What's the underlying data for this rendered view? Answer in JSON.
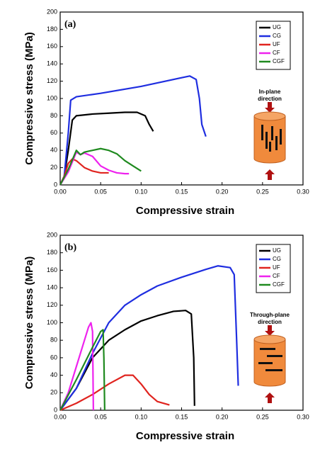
{
  "chart_data": [
    {
      "type": "line",
      "panel_label": "(a)",
      "x_label": "Compressive strain",
      "y_label": "Compressive stress (MPa)",
      "note_lines": [
        "In-plane",
        "direction"
      ],
      "xlim": [
        0,
        0.3
      ],
      "ylim": [
        0,
        200
      ],
      "xticks": [
        {
          "value": 0,
          "label": "0.00"
        },
        {
          "value": 0.05,
          "label": "0.05"
        },
        {
          "value": 0.1,
          "label": "0.10"
        },
        {
          "value": 0.15,
          "label": "0.15"
        },
        {
          "value": 0.2,
          "label": "0.20"
        },
        {
          "value": 0.25,
          "label": "0.25"
        },
        {
          "value": 0.3,
          "label": "0.30"
        }
      ],
      "yticks": [
        0,
        20,
        40,
        60,
        80,
        100,
        120,
        140,
        160,
        180,
        200
      ],
      "series": [
        {
          "name": "UG",
          "color": "#000000",
          "x": [
            0,
            0.005,
            0.01,
            0.015,
            0.02,
            0.04,
            0.06,
            0.08,
            0.095,
            0.105,
            0.11,
            0.115
          ],
          "values": [
            0,
            10,
            40,
            75,
            80,
            82,
            83,
            84,
            84,
            80,
            70,
            62
          ]
        },
        {
          "name": "CG",
          "color": "#1f2ee0",
          "x": [
            0,
            0.005,
            0.01,
            0.013,
            0.02,
            0.05,
            0.1,
            0.15,
            0.16,
            0.168,
            0.172,
            0.175,
            0.18
          ],
          "values": [
            0,
            10,
            60,
            98,
            102,
            106,
            114,
            124,
            126,
            122,
            100,
            70,
            56
          ]
        },
        {
          "name": "UF",
          "color": "#e0241f",
          "x": [
            0,
            0.005,
            0.01,
            0.015,
            0.02,
            0.03,
            0.04,
            0.05,
            0.06
          ],
          "values": [
            0,
            10,
            25,
            30,
            28,
            20,
            16,
            14,
            14
          ]
        },
        {
          "name": "CF",
          "color": "#ee22ee",
          "x": [
            0,
            0.01,
            0.02,
            0.025,
            0.03,
            0.04,
            0.05,
            0.06,
            0.07,
            0.08,
            0.085
          ],
          "values": [
            0,
            15,
            38,
            35,
            37,
            33,
            22,
            17,
            14,
            13,
            13
          ]
        },
        {
          "name": "CGF",
          "color": "#1f8a1f",
          "x": [
            0,
            0.01,
            0.02,
            0.025,
            0.03,
            0.04,
            0.05,
            0.06,
            0.07,
            0.08,
            0.09,
            0.1
          ],
          "values": [
            0,
            18,
            40,
            35,
            38,
            40,
            42,
            40,
            36,
            28,
            22,
            16
          ]
        }
      ]
    },
    {
      "type": "line",
      "panel_label": "(b)",
      "x_label": "Compressive strain",
      "y_label": "Compressive stress (MPa)",
      "note_lines": [
        "Through-plane",
        "direction"
      ],
      "xlim": [
        0,
        0.3
      ],
      "ylim": [
        0,
        200
      ],
      "xticks": [
        {
          "value": 0,
          "label": "0.00"
        },
        {
          "value": 0.05,
          "label": "0.05"
        },
        {
          "value": 0.1,
          "label": "0.10"
        },
        {
          "value": 0.15,
          "label": "0.15"
        },
        {
          "value": 0.2,
          "label": "0.20"
        },
        {
          "value": 0.25,
          "label": "0.25"
        },
        {
          "value": 0.3,
          "label": "0.30"
        }
      ],
      "yticks": [
        0,
        20,
        40,
        60,
        80,
        100,
        120,
        140,
        160,
        180,
        200
      ],
      "series": [
        {
          "name": "UG",
          "color": "#000000",
          "x": [
            0,
            0.02,
            0.04,
            0.06,
            0.08,
            0.1,
            0.12,
            0.14,
            0.155,
            0.162,
            0.165,
            0.166
          ],
          "values": [
            0,
            25,
            60,
            80,
            92,
            102,
            108,
            113,
            114,
            110,
            60,
            5
          ]
        },
        {
          "name": "CG",
          "color": "#1f2ee0",
          "x": [
            0,
            0.02,
            0.04,
            0.06,
            0.08,
            0.1,
            0.12,
            0.15,
            0.18,
            0.195,
            0.21,
            0.215,
            0.218,
            0.22
          ],
          "values": [
            0,
            25,
            65,
            100,
            120,
            132,
            142,
            152,
            161,
            165,
            163,
            155,
            80,
            28
          ]
        },
        {
          "name": "UF",
          "color": "#e0241f",
          "x": [
            0,
            0.02,
            0.04,
            0.06,
            0.08,
            0.09,
            0.1,
            0.11,
            0.12,
            0.135
          ],
          "values": [
            0,
            8,
            18,
            30,
            40,
            40,
            30,
            18,
            10,
            6
          ]
        },
        {
          "name": "CF",
          "color": "#ee22ee",
          "x": [
            0,
            0.01,
            0.02,
            0.03,
            0.035,
            0.038,
            0.04,
            0.041
          ],
          "values": [
            0,
            20,
            50,
            80,
            95,
            100,
            90,
            0
          ]
        },
        {
          "name": "CGF",
          "color": "#1f8a1f",
          "x": [
            0,
            0.02,
            0.04,
            0.05,
            0.053,
            0.054,
            0.055
          ],
          "values": [
            0,
            35,
            72,
            90,
            92,
            60,
            0
          ]
        }
      ]
    }
  ]
}
